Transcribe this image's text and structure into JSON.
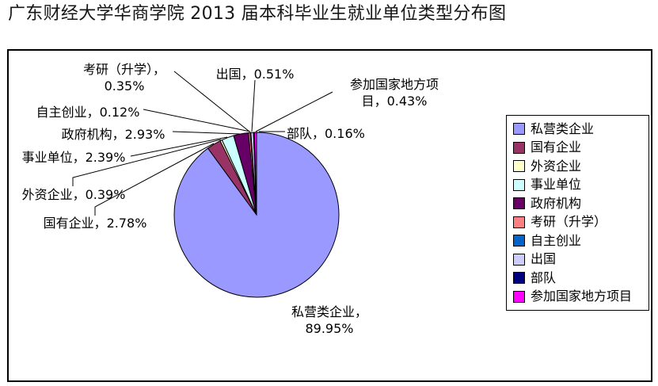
{
  "title": "广东财经大学华商学院 2013 届本科毕业生就业单位类型分布图",
  "chart_data": {
    "type": "pie",
    "title": "广东财经大学华商学院 2013 届本科毕业生就业单位类型分布图",
    "categories": [
      "私营类企业",
      "国有企业",
      "外资企业",
      "事业单位",
      "政府机构",
      "考研（升学）",
      "自主创业",
      "出国",
      "部队",
      "参加国家地方项目"
    ],
    "values": [
      89.95,
      2.78,
      0.39,
      2.39,
      2.93,
      0.35,
      0.12,
      0.51,
      0.16,
      0.43
    ],
    "unit": "%",
    "colors": [
      "#9999FF",
      "#993366",
      "#FFFFCC",
      "#CCFFFF",
      "#660066",
      "#FF8080",
      "#0066CC",
      "#CCCCFF",
      "#000080",
      "#FF00FF"
    ],
    "label_separator": "，",
    "data_labels_visible": true,
    "legend_position": "right",
    "start_angle_deg": 0,
    "direction": "clockwise",
    "outline_color": "#000000"
  }
}
